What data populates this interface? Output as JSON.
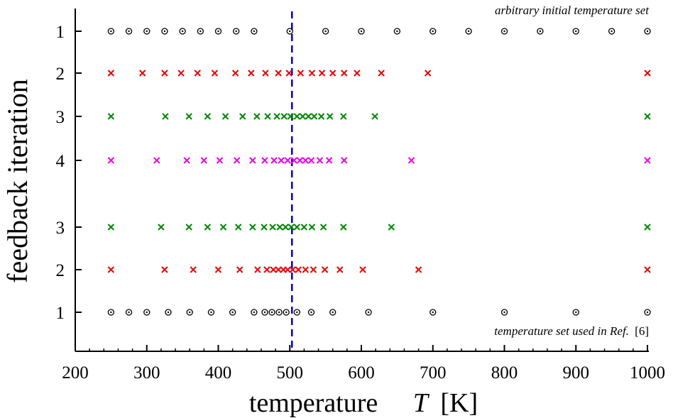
{
  "chart_data": {
    "type": "scatter",
    "title": "",
    "xlabel": {
      "main": "temperature",
      "var": "T",
      "unit": "[K]"
    },
    "ylabel": "feedback iteration",
    "xlim": [
      200,
      1000
    ],
    "xticks": [
      "200",
      "300",
      "400",
      "500",
      "600",
      "700",
      "800",
      "900",
      "1000"
    ],
    "minor_tick_step": 20,
    "reference_line": {
      "x": 503,
      "color": "#0000cc",
      "style": "dashed"
    },
    "annotations": {
      "top": "arbitrary initial temperature set",
      "bottom_text": "temperature set used in Ref.",
      "bottom_ref": "[6]"
    },
    "rows": [
      {
        "label": "1",
        "marker": "circle",
        "color": "#000000",
        "x": [
          250,
          275,
          300,
          325,
          350,
          375,
          400,
          425,
          450,
          500,
          550,
          600,
          650,
          700,
          750,
          800,
          850,
          900,
          950,
          1000
        ]
      },
      {
        "label": "2",
        "marker": "x",
        "color": "#ee0000",
        "x": [
          250,
          294,
          325,
          348,
          371,
          395,
          424,
          446,
          466,
          484,
          499,
          515,
          531,
          545,
          560,
          576,
          594,
          628,
          693,
          1000
        ]
      },
      {
        "label": "3",
        "marker": "x",
        "color": "#008800",
        "x": [
          250,
          326,
          359,
          385,
          410,
          434,
          454,
          469,
          482,
          492,
          501,
          510,
          518,
          526,
          534,
          544,
          556,
          575,
          619,
          1000
        ]
      },
      {
        "label": "4",
        "marker": "x",
        "color": "#ee00ee",
        "x": [
          250,
          314,
          356,
          380,
          402,
          426,
          448,
          465,
          478,
          488,
          497,
          506,
          514,
          522,
          530,
          542,
          555,
          576,
          670,
          1000
        ]
      },
      {
        "label": "3",
        "marker": "x",
        "color": "#008800",
        "x": [
          250,
          320,
          359,
          385,
          407,
          428,
          448,
          464,
          476,
          486,
          494,
          502,
          510,
          520,
          531,
          547,
          575,
          642,
          1000
        ]
      },
      {
        "label": "2",
        "marker": "x",
        "color": "#ee0000",
        "x": [
          250,
          325,
          365,
          400,
          430,
          455,
          468,
          477,
          484,
          491,
          497,
          504,
          512,
          522,
          533,
          549,
          570,
          602,
          680,
          1000
        ]
      },
      {
        "label": "1",
        "marker": "circle",
        "color": "#000000",
        "x": [
          250,
          275,
          300,
          330,
          360,
          390,
          420,
          450,
          465,
          475,
          485,
          495,
          510,
          530,
          560,
          610,
          700,
          800,
          900,
          1000
        ]
      }
    ]
  }
}
